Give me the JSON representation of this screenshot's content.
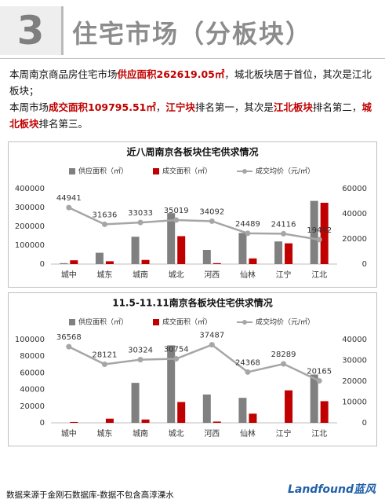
{
  "header": {
    "number": "3",
    "title": "住宅市场（分板块）"
  },
  "paragraphs": [
    [
      {
        "text": "本周南京商品房住宅市场"
      },
      {
        "text": "供应面积262619.05㎡",
        "highlight": true
      },
      {
        "text": "，城北板块居于首位，其次是江北板块；"
      }
    ],
    [
      {
        "text": "本周市场"
      },
      {
        "text": "成交面积109795.51㎡",
        "highlight": true
      },
      {
        "text": "，"
      },
      {
        "text": "江宁块",
        "highlight": true
      },
      {
        "text": "排名第一，其次是"
      },
      {
        "text": "江北板块",
        "highlight": true
      },
      {
        "text": "排名第二，"
      },
      {
        "text": "城北板块",
        "highlight": true
      },
      {
        "text": "排名第三。"
      }
    ]
  ],
  "chart_data": [
    {
      "type": "combo",
      "title": "近八周南京各板块住宅供求情况",
      "categories": [
        "城中",
        "城东",
        "城南",
        "城北",
        "河西",
        "仙林",
        "江宁",
        "江北"
      ],
      "series": [
        {
          "name": "供应面积（㎡）",
          "type": "bar",
          "color": "#808080",
          "values": [
            5000,
            60000,
            145000,
            270000,
            75000,
            165000,
            120000,
            335000
          ]
        },
        {
          "name": "成交面积（㎡）",
          "type": "bar",
          "color": "#c00000",
          "values": [
            20000,
            15000,
            22000,
            148000,
            5000,
            30000,
            110000,
            325000
          ]
        },
        {
          "name": "成交均价（元/㎡）",
          "type": "line",
          "axis": "y2",
          "color": "#a6a6a6",
          "values": [
            44941,
            31636,
            33033,
            35019,
            34092,
            24489,
            24116,
            19442
          ]
        }
      ],
      "ylim": [
        0,
        400000
      ],
      "yticks": [
        0,
        100000,
        200000,
        300000,
        400000
      ],
      "y2lim": [
        0,
        60000
      ],
      "y2ticks": [
        0,
        20000,
        40000,
        60000
      ]
    },
    {
      "type": "combo",
      "title": "11.5-11.11南京各板块住宅供求情况",
      "categories": [
        "城中",
        "城东",
        "城南",
        "城北",
        "河西",
        "仙林",
        "江宁",
        "江北"
      ],
      "series": [
        {
          "name": "供应面积（㎡）",
          "type": "bar",
          "color": "#808080",
          "values": [
            0,
            0,
            48000,
            93000,
            34000,
            30000,
            0,
            58000
          ]
        },
        {
          "name": "成交面积（㎡）",
          "type": "bar",
          "color": "#c00000",
          "values": [
            1000,
            5000,
            4000,
            25000,
            1500,
            11000,
            39000,
            26000
          ]
        },
        {
          "name": "成交均价（元/㎡）",
          "type": "line",
          "axis": "y2",
          "color": "#a6a6a6",
          "values": [
            36568,
            28121,
            30324,
            30754,
            37487,
            24368,
            28289,
            20165
          ]
        }
      ],
      "ylim": [
        0,
        100000
      ],
      "yticks": [
        0,
        20000,
        40000,
        60000,
        80000,
        100000
      ],
      "y2lim": [
        0,
        40000
      ],
      "y2ticks": [
        0,
        10000,
        20000,
        30000,
        40000
      ]
    }
  ],
  "footer": {
    "source": "数据来源于金刚石数据库-数据不包含高淳溧水",
    "logo": "Landfound蓝风"
  }
}
